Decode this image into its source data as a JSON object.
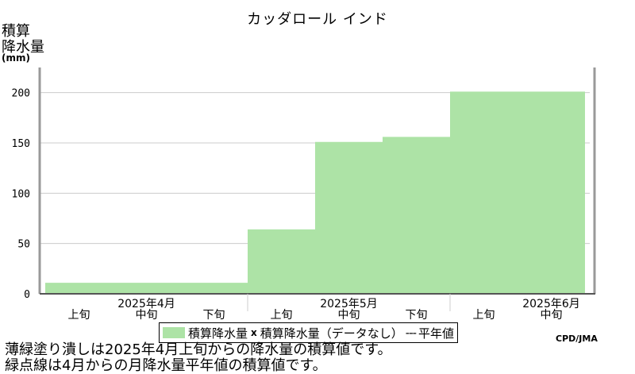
{
  "chart_data": {
    "type": "area",
    "title": "カッダロール インド",
    "ylabel_lines": [
      "積算",
      "降水量"
    ],
    "yunit": "(mm)",
    "ylim": [
      0,
      225
    ],
    "yticks": [
      0,
      50,
      100,
      150,
      200
    ],
    "periods": [
      "2025年4月 上旬",
      "2025年4月 中旬",
      "2025年4月 下旬",
      "2025年5月 上旬",
      "2025年5月 中旬",
      "2025年5月 下旬",
      "2025年6月 上旬",
      "2025年6月 中旬"
    ],
    "values": [
      11,
      11,
      11,
      64,
      151,
      156,
      201,
      201
    ],
    "xticks": [
      {
        "label": "上旬",
        "index": 0
      },
      {
        "label": "中旬",
        "index": 1
      },
      {
        "label": "下旬",
        "index": 2
      },
      {
        "label": "上旬",
        "index": 3
      },
      {
        "label": "中旬",
        "index": 4
      },
      {
        "label": "下旬",
        "index": 5
      },
      {
        "label": "上旬",
        "index": 6
      },
      {
        "label": "中旬",
        "index": 7
      }
    ],
    "months": [
      "2025年4月",
      "2025年5月",
      "2025年6月"
    ],
    "grid": true,
    "colors": {
      "fill": "#ade3a6",
      "grid": "#cccccc",
      "frame": "#999999"
    }
  },
  "legend": {
    "item1": "積算降水量",
    "mark": "x",
    "item2": "積算降水量（データなし）",
    "dash": "---",
    "item3": "平年値"
  },
  "credit": "CPD/JMA",
  "notes": {
    "line1": "薄緑塗り潰しは2025年4月上旬からの降水量の積算値です。",
    "line2": "緑点線は4月からの月降水量平年値の積算値です。"
  }
}
